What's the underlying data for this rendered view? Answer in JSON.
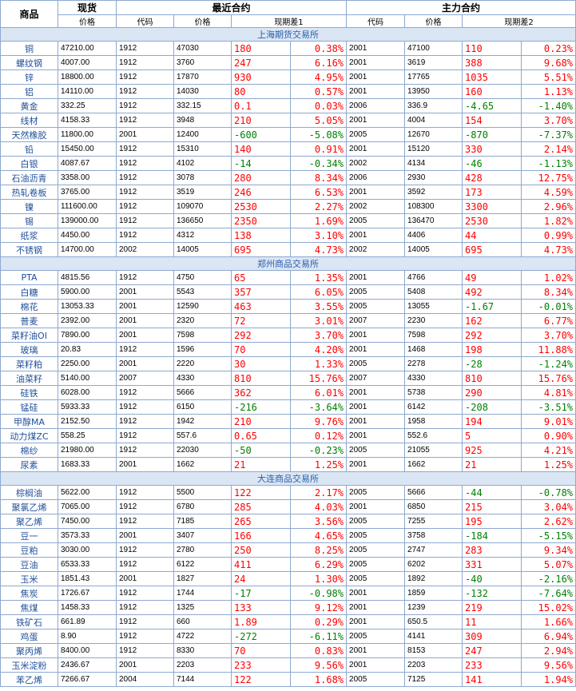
{
  "headers": {
    "commodity": "商品",
    "spot": "现货",
    "recent": "最近合约",
    "main": "主力合约",
    "price": "价格",
    "code": "代码",
    "basis1": "现期差1",
    "basis2": "现期差2"
  },
  "sections": [
    {
      "title": "上海期货交易所",
      "rows": [
        [
          "铜",
          "47210.00",
          "1912",
          "47030",
          "180",
          "0.38%",
          "2001",
          "47100",
          "110",
          "0.23%"
        ],
        [
          "螺纹钢",
          "4007.00",
          "1912",
          "3760",
          "247",
          "6.16%",
          "2001",
          "3619",
          "388",
          "9.68%"
        ],
        [
          "锌",
          "18800.00",
          "1912",
          "17870",
          "930",
          "4.95%",
          "2001",
          "17765",
          "1035",
          "5.51%"
        ],
        [
          "铝",
          "14110.00",
          "1912",
          "14030",
          "80",
          "0.57%",
          "2001",
          "13950",
          "160",
          "1.13%"
        ],
        [
          "黄金",
          "332.25",
          "1912",
          "332.15",
          "0.1",
          "0.03%",
          "2006",
          "336.9",
          "-4.65",
          "-1.40%"
        ],
        [
          "线材",
          "4158.33",
          "1912",
          "3948",
          "210",
          "5.05%",
          "2001",
          "4004",
          "154",
          "3.70%"
        ],
        [
          "天然橡胶",
          "11800.00",
          "2001",
          "12400",
          "-600",
          "-5.08%",
          "2005",
          "12670",
          "-870",
          "-7.37%"
        ],
        [
          "铅",
          "15450.00",
          "1912",
          "15310",
          "140",
          "0.91%",
          "2001",
          "15120",
          "330",
          "2.14%"
        ],
        [
          "白银",
          "4087.67",
          "1912",
          "4102",
          "-14",
          "-0.34%",
          "2002",
          "4134",
          "-46",
          "-1.13%"
        ],
        [
          "石油沥青",
          "3358.00",
          "1912",
          "3078",
          "280",
          "8.34%",
          "2006",
          "2930",
          "428",
          "12.75%"
        ],
        [
          "热轧卷板",
          "3765.00",
          "1912",
          "3519",
          "246",
          "6.53%",
          "2001",
          "3592",
          "173",
          "4.59%"
        ],
        [
          "镍",
          "111600.00",
          "1912",
          "109070",
          "2530",
          "2.27%",
          "2002",
          "108300",
          "3300",
          "2.96%"
        ],
        [
          "锡",
          "139000.00",
          "1912",
          "136650",
          "2350",
          "1.69%",
          "2005",
          "136470",
          "2530",
          "1.82%"
        ],
        [
          "纸浆",
          "4450.00",
          "1912",
          "4312",
          "138",
          "3.10%",
          "2001",
          "4406",
          "44",
          "0.99%"
        ],
        [
          "不锈钢",
          "14700.00",
          "2002",
          "14005",
          "695",
          "4.73%",
          "2002",
          "14005",
          "695",
          "4.73%"
        ]
      ]
    },
    {
      "title": "郑州商品交易所",
      "rows": [
        [
          "PTA",
          "4815.56",
          "1912",
          "4750",
          "65",
          "1.35%",
          "2001",
          "4766",
          "49",
          "1.02%"
        ],
        [
          "白糖",
          "5900.00",
          "2001",
          "5543",
          "357",
          "6.05%",
          "2005",
          "5408",
          "492",
          "8.34%"
        ],
        [
          "棉花",
          "13053.33",
          "2001",
          "12590",
          "463",
          "3.55%",
          "2005",
          "13055",
          "-1.67",
          "-0.01%"
        ],
        [
          "普麦",
          "2392.00",
          "2001",
          "2320",
          "72",
          "3.01%",
          "2007",
          "2230",
          "162",
          "6.77%"
        ],
        [
          "菜籽油OI",
          "7890.00",
          "2001",
          "7598",
          "292",
          "3.70%",
          "2001",
          "7598",
          "292",
          "3.70%"
        ],
        [
          "玻璃",
          "20.83",
          "1912",
          "1596",
          "70",
          "4.20%",
          "2001",
          "1468",
          "198",
          "11.88%"
        ],
        [
          "菜籽粕",
          "2250.00",
          "2001",
          "2220",
          "30",
          "1.33%",
          "2005",
          "2278",
          "-28",
          "-1.24%"
        ],
        [
          "油菜籽",
          "5140.00",
          "2007",
          "4330",
          "810",
          "15.76%",
          "2007",
          "4330",
          "810",
          "15.76%"
        ],
        [
          "硅铁",
          "6028.00",
          "1912",
          "5666",
          "362",
          "6.01%",
          "2001",
          "5738",
          "290",
          "4.81%"
        ],
        [
          "锰硅",
          "5933.33",
          "1912",
          "6150",
          "-216",
          "-3.64%",
          "2001",
          "6142",
          "-208",
          "-3.51%"
        ],
        [
          "甲醇MA",
          "2152.50",
          "1912",
          "1942",
          "210",
          "9.76%",
          "2001",
          "1958",
          "194",
          "9.01%"
        ],
        [
          "动力煤ZC",
          "558.25",
          "1912",
          "557.6",
          "0.65",
          "0.12%",
          "2001",
          "552.6",
          "5",
          "0.90%"
        ],
        [
          "棉纱",
          "21980.00",
          "1912",
          "22030",
          "-50",
          "-0.23%",
          "2005",
          "21055",
          "925",
          "4.21%"
        ],
        [
          "尿素",
          "1683.33",
          "2001",
          "1662",
          "21",
          "1.25%",
          "2001",
          "1662",
          "21",
          "1.25%"
        ]
      ]
    },
    {
      "title": "大连商品交易所",
      "rows": [
        [
          "棕榈油",
          "5622.00",
          "1912",
          "5500",
          "122",
          "2.17%",
          "2005",
          "5666",
          "-44",
          "-0.78%"
        ],
        [
          "聚氯乙烯",
          "7065.00",
          "1912",
          "6780",
          "285",
          "4.03%",
          "2001",
          "6850",
          "215",
          "3.04%"
        ],
        [
          "聚乙烯",
          "7450.00",
          "1912",
          "7185",
          "265",
          "3.56%",
          "2005",
          "7255",
          "195",
          "2.62%"
        ],
        [
          "豆一",
          "3573.33",
          "2001",
          "3407",
          "166",
          "4.65%",
          "2005",
          "3758",
          "-184",
          "-5.15%"
        ],
        [
          "豆粕",
          "3030.00",
          "1912",
          "2780",
          "250",
          "8.25%",
          "2005",
          "2747",
          "283",
          "9.34%"
        ],
        [
          "豆油",
          "6533.33",
          "1912",
          "6122",
          "411",
          "6.29%",
          "2005",
          "6202",
          "331",
          "5.07%"
        ],
        [
          "玉米",
          "1851.43",
          "2001",
          "1827",
          "24",
          "1.30%",
          "2005",
          "1892",
          "-40",
          "-2.16%"
        ],
        [
          "焦炭",
          "1726.67",
          "1912",
          "1744",
          "-17",
          "-0.98%",
          "2001",
          "1859",
          "-132",
          "-7.64%"
        ],
        [
          "焦煤",
          "1458.33",
          "1912",
          "1325",
          "133",
          "9.12%",
          "2001",
          "1239",
          "219",
          "15.02%"
        ],
        [
          "铁矿石",
          "661.89",
          "1912",
          "660",
          "1.89",
          "0.29%",
          "2001",
          "650.5",
          "11",
          "1.66%"
        ],
        [
          "鸡蛋",
          "8.90",
          "1912",
          "4722",
          "-272",
          "-6.11%",
          "2005",
          "4141",
          "309",
          "6.94%"
        ],
        [
          "聚丙烯",
          "8400.00",
          "1912",
          "8330",
          "70",
          "0.83%",
          "2001",
          "8153",
          "247",
          "2.94%"
        ],
        [
          "玉米淀粉",
          "2436.67",
          "2001",
          "2203",
          "233",
          "9.56%",
          "2001",
          "2203",
          "233",
          "9.56%"
        ],
        [
          "苯乙烯",
          "7266.67",
          "2004",
          "7144",
          "122",
          "1.68%",
          "2005",
          "7125",
          "141",
          "1.94%"
        ]
      ]
    }
  ]
}
